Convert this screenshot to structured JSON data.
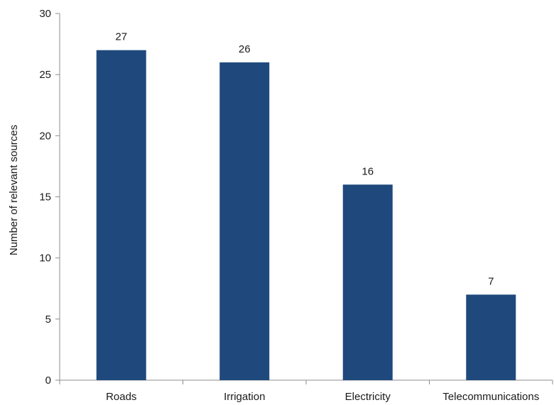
{
  "chart_data": {
    "type": "bar",
    "categories": [
      "Roads",
      "Irrigation",
      "Electricity",
      "Telecommunications"
    ],
    "values": [
      27,
      26,
      16,
      7
    ],
    "data_labels": [
      "27",
      "26",
      "16",
      "7"
    ],
    "title": "",
    "xlabel": "",
    "ylabel": "Number of relevant sources",
    "ylim": [
      0,
      30
    ],
    "yticks": [
      0,
      5,
      10,
      15,
      20,
      25,
      30
    ],
    "grid": false,
    "legend": "none",
    "bar_color": "#1f497d"
  }
}
